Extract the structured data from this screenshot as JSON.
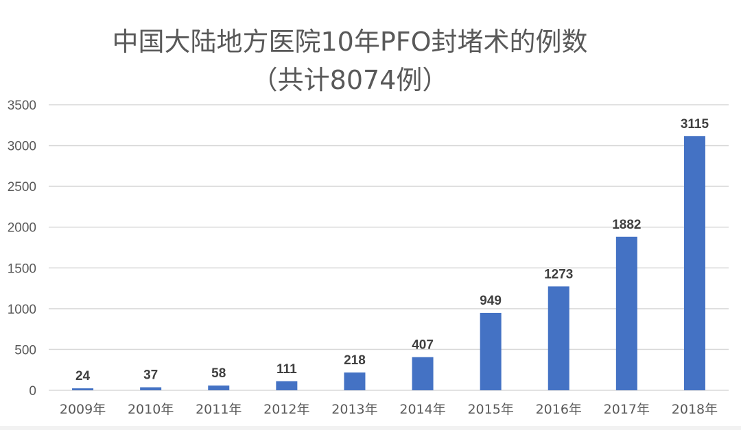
{
  "chart_data": {
    "type": "bar",
    "title": "中国大陆地方医院10年PFO封堵术的例数",
    "subtitle": "（共计8074例）",
    "categories": [
      "2009年",
      "2010年",
      "2011年",
      "2012年",
      "2013年",
      "2014年",
      "2015年",
      "2016年",
      "2017年",
      "2018年"
    ],
    "values": [
      24,
      37,
      58,
      111,
      218,
      407,
      949,
      1273,
      1882,
      3115
    ],
    "xlabel": "",
    "ylabel": "",
    "ylim": [
      0,
      3500
    ],
    "yticks": [
      0,
      500,
      1000,
      1500,
      2000,
      2500,
      3000,
      3500
    ],
    "grid": true,
    "legend": "none",
    "data_labels": true,
    "colors": {
      "bar": "#4472c4",
      "grid": "#d9d9d9",
      "tick_text": "#595959",
      "label_text": "#404040"
    }
  }
}
